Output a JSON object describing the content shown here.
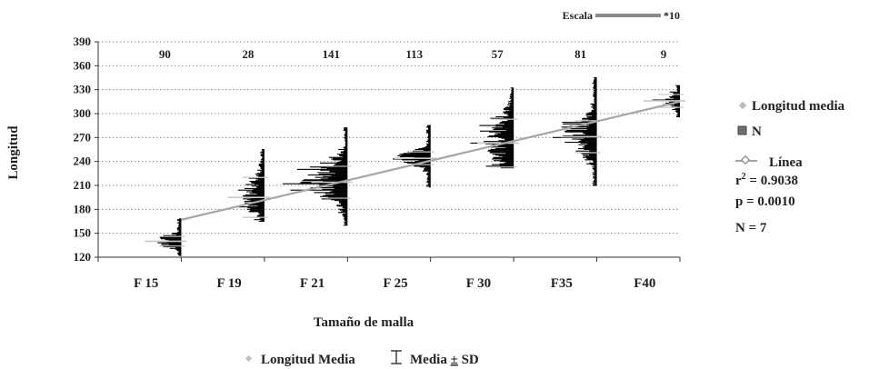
{
  "chart_data": {
    "type": "bar",
    "title": "",
    "xlabel": "Tamaño de malla",
    "ylabel": "Longitud",
    "ylim": [
      120,
      390
    ],
    "yticks": [
      120,
      150,
      180,
      210,
      240,
      270,
      300,
      330,
      360,
      390
    ],
    "grid": "horizontal-dotted",
    "categories": [
      "F 15",
      "F 19",
      "F 21",
      "F 25",
      "F 30",
      "F35",
      "F40"
    ],
    "sample_sizes": [
      90,
      28,
      141,
      113,
      57,
      81,
      9
    ],
    "mean_length": [
      140,
      195,
      214,
      244,
      263,
      271,
      316
    ],
    "sd": [
      6,
      25,
      20,
      8,
      30,
      20,
      8
    ],
    "length_range": [
      [
        122,
        168
      ],
      [
        165,
        255
      ],
      [
        160,
        282
      ],
      [
        208,
        285
      ],
      [
        232,
        332
      ],
      [
        210,
        345
      ],
      [
        296,
        335
      ]
    ],
    "trend_line": {
      "x_start": "F 15",
      "y_start": 167,
      "x_end": "F40",
      "y_end": 315
    },
    "scale_bar": {
      "label": "Escala",
      "value": "*10"
    },
    "legend_right": {
      "mean": "Longitud media",
      "n": "N",
      "line": "Línea",
      "r2_prefix": "r",
      "r2_sup": "2",
      "r2_value": " = 0.9038",
      "p": "p  = 0.0010",
      "N": "N = 7"
    },
    "legend_bottom": {
      "mean": "Longitud Media",
      "sd": "Media ± SD",
      "sd_pre": "Media ",
      "sd_pm": "±",
      "sd_post": " SD"
    },
    "colors": {
      "bars": "#000000",
      "trend": "#a6a6a6",
      "mean_tick": "#c8c8c8",
      "grid": "#8c8c8c"
    }
  }
}
